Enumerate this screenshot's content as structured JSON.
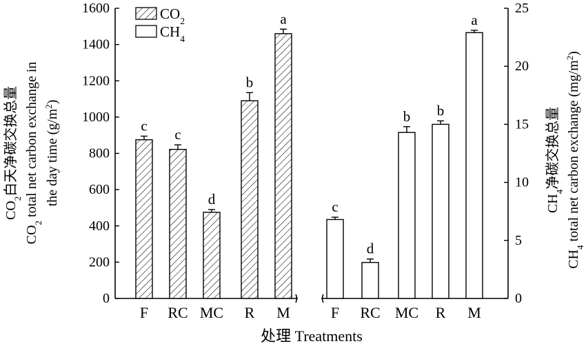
{
  "chart_data": {
    "type": "bar",
    "xlabel": "处理 Treatments",
    "legend": {
      "placement": "top-left",
      "entries": [
        {
          "label": "CO",
          "sub": "2",
          "pattern": "hatched"
        },
        {
          "label": "CH",
          "sub": "4",
          "pattern": "open"
        }
      ]
    },
    "left_axis": {
      "ylim": [
        0,
        1600
      ],
      "ticks": [
        "0",
        "200",
        "400",
        "600",
        "800",
        "1000",
        "1200",
        "1400",
        "1600"
      ],
      "title_line1": "CO2白天净碳交换总量",
      "title_line2": "CO2 total net carbon exchange in",
      "title_line3": "the day time (g/m2)"
    },
    "right_axis": {
      "ylim": [
        0,
        25
      ],
      "ticks": [
        "0",
        "5",
        "10",
        "15",
        "20",
        "25"
      ],
      "title_line1": "CH4净碳交换总量",
      "title_line2": "CH4 total net carbon exchange (mg/m2)"
    },
    "groups": [
      {
        "series": "CO2",
        "axis": "left",
        "categories": [
          "F",
          "RC",
          "MC",
          "R",
          "M"
        ],
        "values": [
          875,
          822,
          475,
          1090,
          1460
        ],
        "errors": [
          20,
          25,
          15,
          45,
          25
        ],
        "significance": [
          "c",
          "c",
          "d",
          "b",
          "a"
        ]
      },
      {
        "series": "CH4",
        "axis": "right",
        "categories": [
          "F",
          "RC",
          "MC",
          "R",
          "M"
        ],
        "values": [
          6.8,
          3.1,
          14.3,
          15.0,
          22.9
        ],
        "errors": [
          0.2,
          0.3,
          0.5,
          0.3,
          0.2
        ],
        "significance": [
          "c",
          "d",
          "b",
          "b",
          "a"
        ]
      }
    ]
  }
}
